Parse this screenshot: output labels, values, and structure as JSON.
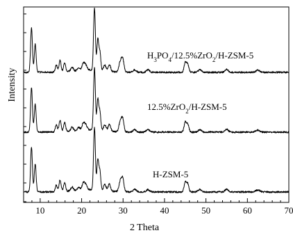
{
  "chart_data": {
    "type": "line",
    "title": "",
    "xlabel": "2 Theta",
    "ylabel": "Intensity",
    "xlim": [
      6,
      70
    ],
    "x_ticks": [
      10,
      20,
      30,
      40,
      50,
      60,
      70
    ],
    "y_ticks_labeled": false,
    "grid": false,
    "legend": "none",
    "line_color": "#000000",
    "baselines": [
      0,
      1,
      2
    ],
    "peaks": [
      {
        "x": 7.9,
        "h": 0.92,
        "w": 0.22
      },
      {
        "x": 8.8,
        "h": 0.58,
        "w": 0.22
      },
      {
        "x": 13.9,
        "h": 0.14,
        "w": 0.25
      },
      {
        "x": 14.8,
        "h": 0.24,
        "w": 0.25
      },
      {
        "x": 15.9,
        "h": 0.18,
        "w": 0.25
      },
      {
        "x": 17.7,
        "h": 0.08,
        "w": 0.3
      },
      {
        "x": 19.3,
        "h": 0.06,
        "w": 0.3
      },
      {
        "x": 20.4,
        "h": 0.14,
        "w": 0.3
      },
      {
        "x": 21.0,
        "h": 0.1,
        "w": 0.3
      },
      {
        "x": 23.1,
        "h": 1.28,
        "w": 0.22
      },
      {
        "x": 23.9,
        "h": 0.62,
        "w": 0.22
      },
      {
        "x": 24.4,
        "h": 0.38,
        "w": 0.22
      },
      {
        "x": 25.6,
        "h": 0.12,
        "w": 0.3
      },
      {
        "x": 26.7,
        "h": 0.14,
        "w": 0.3
      },
      {
        "x": 29.3,
        "h": 0.2,
        "w": 0.3
      },
      {
        "x": 29.9,
        "h": 0.28,
        "w": 0.3
      },
      {
        "x": 32.8,
        "h": 0.05,
        "w": 0.4
      },
      {
        "x": 36.0,
        "h": 0.05,
        "w": 0.4
      },
      {
        "x": 45.0,
        "h": 0.2,
        "w": 0.28
      },
      {
        "x": 45.6,
        "h": 0.16,
        "w": 0.28
      },
      {
        "x": 48.5,
        "h": 0.05,
        "w": 0.4
      },
      {
        "x": 55.0,
        "h": 0.06,
        "w": 0.4
      },
      {
        "x": 62.5,
        "h": 0.04,
        "w": 0.5
      }
    ],
    "series": [
      {
        "label_parts": [
          [
            "H",
            ""
          ],
          [
            "3",
            "sub"
          ],
          [
            "PO",
            ""
          ],
          [
            "4",
            "sub"
          ],
          [
            "/12.5%ZrO",
            ""
          ],
          [
            "2",
            "sub"
          ],
          [
            "/H-ZSM-5",
            ""
          ]
        ],
        "baseline_index": 0
      },
      {
        "label_parts": [
          [
            "12.5%ZrO",
            ""
          ],
          [
            "2",
            "sub"
          ],
          [
            "/H-ZSM-5",
            ""
          ]
        ],
        "baseline_index": 1
      },
      {
        "label_parts": [
          [
            "H-ZSM-5",
            ""
          ]
        ],
        "baseline_index": 2
      }
    ]
  }
}
